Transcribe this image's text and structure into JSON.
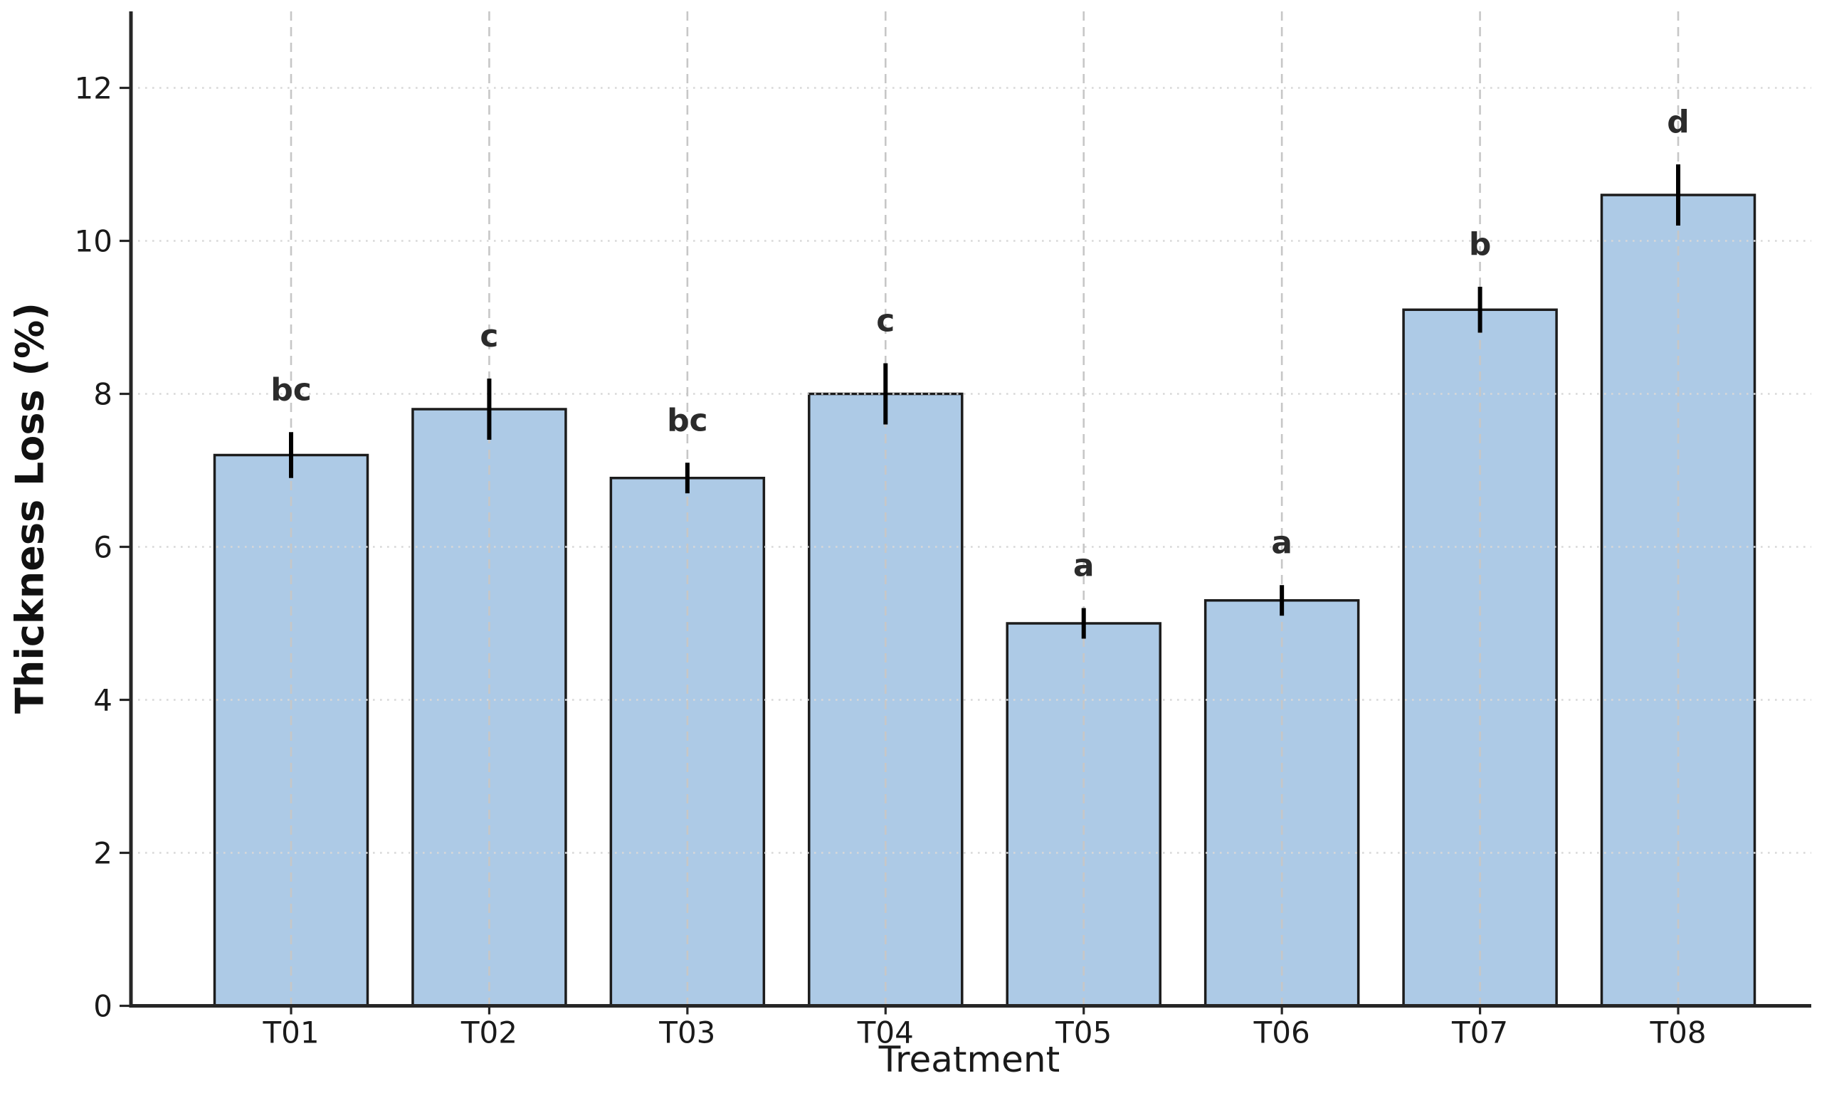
{
  "chart_data": {
    "type": "bar",
    "title": "",
    "xlabel": "Treatment",
    "ylabel": "Thickness Loss (%)",
    "categories": [
      "T01",
      "T02",
      "T03",
      "T04",
      "T05",
      "T06",
      "T07",
      "T08"
    ],
    "values": [
      7.2,
      7.8,
      6.9,
      8.0,
      5.0,
      5.3,
      9.1,
      10.6
    ],
    "error_bars": [
      0.3,
      0.4,
      0.2,
      0.4,
      0.2,
      0.2,
      0.3,
      0.4
    ],
    "sig_letters": [
      "bc",
      "c",
      "bc",
      "c",
      "a",
      "a",
      "b",
      "d"
    ],
    "ylim": [
      0,
      13
    ],
    "yticks": [
      0,
      2,
      4,
      6,
      8,
      10,
      12
    ],
    "legend": "none",
    "grid": {
      "horizontal_style": "dotted",
      "vertical_style": "dashed",
      "drawn_above_bars": true
    },
    "colors": {
      "bar_fill": "#adcae6",
      "bar_edge": "#1c1c1c",
      "error_bar": "#000000",
      "sig_letter": "#2b2b2b",
      "axis_spine": "#262626",
      "tick_label": "#1a1a1a",
      "grid_horizontal": "#d8d8d8",
      "grid_vertical": "#c7c7c7",
      "background": "#ffffff"
    }
  }
}
